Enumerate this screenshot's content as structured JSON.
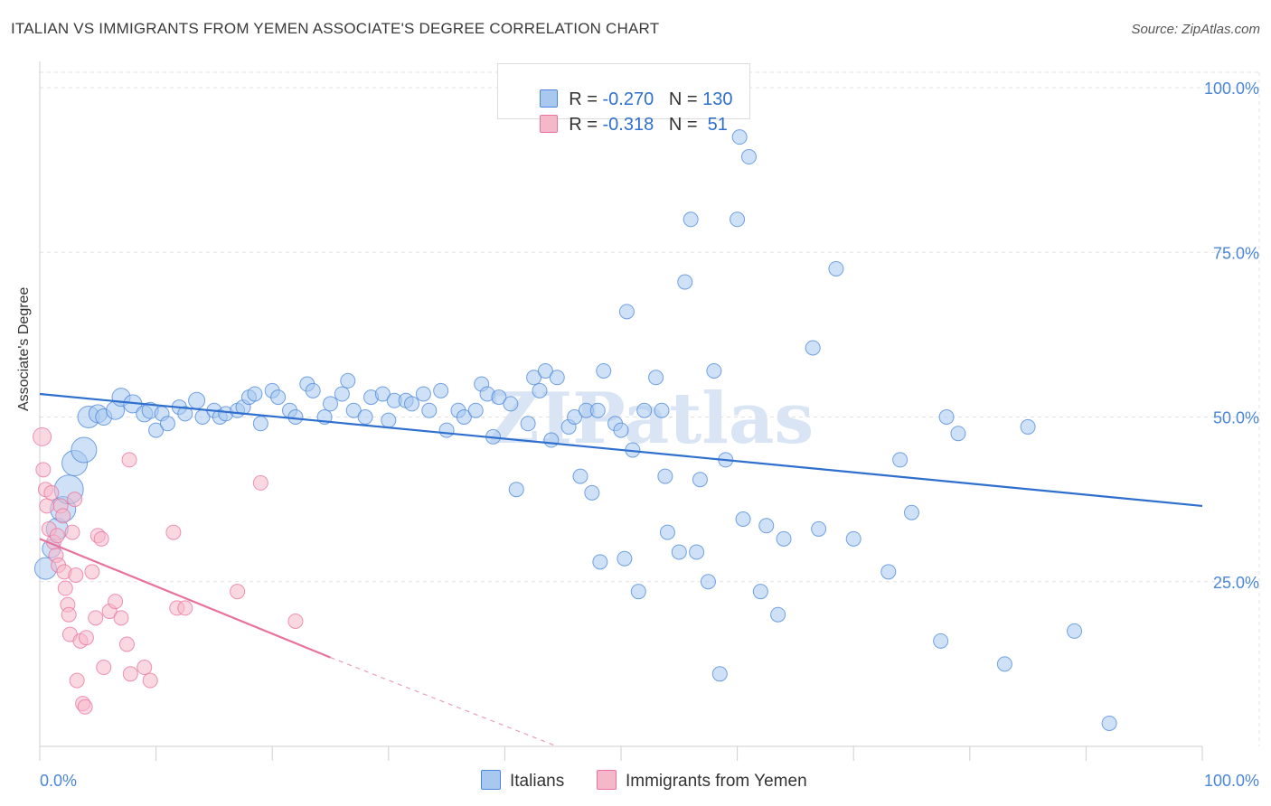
{
  "header": {
    "title": "ITALIAN VS IMMIGRANTS FROM YEMEN ASSOCIATE'S DEGREE CORRELATION CHART",
    "source": "Source: ZipAtlas.com"
  },
  "watermark": "ZIPatlas",
  "legend": {
    "rows": [
      {
        "r_label": "R = ",
        "r_value": "-0.270",
        "n_label": "N = ",
        "n_value": "130",
        "color": "#a8c8f0"
      },
      {
        "r_label": "R = ",
        "r_value": "-0.318",
        "n_label": "N = ",
        "n_value": " 51",
        "color": "#f5b8cb"
      }
    ]
  },
  "bottom_legend": [
    {
      "label": "Italians",
      "color": "#a8c8f0"
    },
    {
      "label": "Immigrants from Yemen",
      "color": "#f5b8cb"
    }
  ],
  "axes": {
    "ylabel": "Associate's Degree",
    "x_min_label": "0.0%",
    "x_max_label": "100.0%",
    "y_ticks": [
      "100.0%",
      "75.0%",
      "50.0%",
      "25.0%"
    ]
  },
  "chart_data": {
    "type": "scatter",
    "xlabel": "",
    "ylabel": "Associate's Degree",
    "xlim": [
      0,
      100
    ],
    "ylim": [
      0,
      100
    ],
    "grid": true,
    "legend_placement": "top-center",
    "series": [
      {
        "name": "Italians",
        "color": "#4a86d9",
        "fill": "#a8c8f0",
        "r": -0.27,
        "n": 130,
        "trend": {
          "x0": 0,
          "y0": 53.5,
          "x1": 100,
          "y1": 36.5
        },
        "points": [
          [
            0.5,
            27,
            12
          ],
          [
            1,
            30,
            10
          ],
          [
            1.5,
            33,
            12
          ],
          [
            2,
            36,
            14
          ],
          [
            2.5,
            39,
            16
          ],
          [
            3,
            43,
            14
          ],
          [
            3.8,
            45,
            14
          ],
          [
            4.2,
            50,
            12
          ],
          [
            5,
            50.5,
            10
          ],
          [
            5.5,
            50,
            9
          ],
          [
            6.5,
            51,
            10
          ],
          [
            7,
            53,
            10
          ],
          [
            8,
            52,
            10
          ],
          [
            9,
            50.5,
            9
          ],
          [
            9.5,
            51,
            9
          ],
          [
            10,
            48,
            8
          ],
          [
            10.5,
            50.5,
            8
          ],
          [
            11,
            49,
            8
          ],
          [
            12,
            51.5,
            8
          ],
          [
            12.5,
            50.5,
            8
          ],
          [
            13.5,
            52.5,
            9
          ],
          [
            14,
            50,
            8
          ],
          [
            15,
            51,
            8
          ],
          [
            15.5,
            50,
            8
          ],
          [
            16,
            50.5,
            8
          ],
          [
            17,
            51,
            8
          ],
          [
            17.5,
            51.5,
            8
          ],
          [
            18,
            53,
            8
          ],
          [
            18.5,
            53.5,
            8
          ],
          [
            19,
            49,
            8
          ],
          [
            20,
            54,
            8
          ],
          [
            20.5,
            53,
            8
          ],
          [
            21.5,
            51,
            8
          ],
          [
            22,
            50,
            8
          ],
          [
            23,
            55,
            8
          ],
          [
            23.5,
            54,
            8
          ],
          [
            24.5,
            50,
            8
          ],
          [
            25,
            52,
            8
          ],
          [
            26,
            53.5,
            8
          ],
          [
            26.5,
            55.5,
            8
          ],
          [
            27,
            51,
            8
          ],
          [
            28,
            50,
            8
          ],
          [
            28.5,
            53,
            8
          ],
          [
            29.5,
            53.5,
            8
          ],
          [
            30,
            49.5,
            8
          ],
          [
            30.5,
            52.5,
            8
          ],
          [
            31.5,
            52.5,
            8
          ],
          [
            32,
            52,
            8
          ],
          [
            33,
            53.5,
            8
          ],
          [
            33.5,
            51,
            8
          ],
          [
            34.5,
            54,
            8
          ],
          [
            35,
            48,
            8
          ],
          [
            36,
            51,
            8
          ],
          [
            36.5,
            50,
            8
          ],
          [
            37.5,
            51,
            8
          ],
          [
            38,
            55,
            8
          ],
          [
            38.5,
            53.5,
            8
          ],
          [
            39,
            47,
            8
          ],
          [
            39.5,
            53,
            8
          ],
          [
            40.5,
            52,
            8
          ],
          [
            41,
            39,
            8
          ],
          [
            42,
            49,
            8
          ],
          [
            42.5,
            56,
            8
          ],
          [
            43,
            54,
            8
          ],
          [
            43.5,
            57,
            8
          ],
          [
            44,
            46.5,
            8
          ],
          [
            44.5,
            56,
            8
          ],
          [
            45.5,
            48.5,
            8
          ],
          [
            46,
            50,
            8
          ],
          [
            46.5,
            41,
            8
          ],
          [
            47,
            51,
            8
          ],
          [
            47.5,
            38.5,
            8
          ],
          [
            48,
            51,
            8
          ],
          [
            48.5,
            57,
            8
          ],
          [
            48.2,
            28,
            8
          ],
          [
            49.5,
            49,
            8
          ],
          [
            50,
            48,
            8
          ],
          [
            50.3,
            28.5,
            8
          ],
          [
            50.5,
            66,
            8
          ],
          [
            51,
            45,
            8
          ],
          [
            51.5,
            23.5,
            8
          ],
          [
            52,
            51,
            8
          ],
          [
            53,
            56,
            8
          ],
          [
            53.5,
            51,
            8
          ],
          [
            53.8,
            41,
            8
          ],
          [
            54,
            32.5,
            8
          ],
          [
            55,
            29.5,
            8
          ],
          [
            55.5,
            70.5,
            8
          ],
          [
            56,
            80,
            8
          ],
          [
            56.5,
            29.5,
            8
          ],
          [
            56.8,
            40.5,
            8
          ],
          [
            57.5,
            25,
            8
          ],
          [
            58,
            57,
            8
          ],
          [
            58.5,
            11,
            8
          ],
          [
            59,
            43.5,
            8
          ],
          [
            60,
            80,
            8
          ],
          [
            60.5,
            34.5,
            8
          ],
          [
            61,
            89.5,
            8
          ],
          [
            60.2,
            92.5,
            8
          ],
          [
            62,
            23.5,
            8
          ],
          [
            62.5,
            33.5,
            8
          ],
          [
            63.5,
            20,
            8
          ],
          [
            64,
            31.5,
            8
          ],
          [
            66.5,
            60.5,
            8
          ],
          [
            67,
            33,
            8
          ],
          [
            68.5,
            72.5,
            8
          ],
          [
            70,
            31.5,
            8
          ],
          [
            73,
            26.5,
            8
          ],
          [
            74,
            43.5,
            8
          ],
          [
            75,
            35.5,
            8
          ],
          [
            77.5,
            16,
            8
          ],
          [
            78,
            50,
            8
          ],
          [
            79,
            47.5,
            8
          ],
          [
            83,
            12.5,
            8
          ],
          [
            85,
            48.5,
            8
          ],
          [
            89,
            17.5,
            8
          ],
          [
            92,
            3.5,
            8
          ]
        ]
      },
      {
        "name": "Immigrants from Yemen",
        "color": "#e8729c",
        "fill": "#f5b8cb",
        "r": -0.318,
        "n": 51,
        "trend": {
          "x0": 0,
          "y0": 31.5,
          "x1": 25,
          "y1": 13.5,
          "dash_to_x": 44.5,
          "dash_to_y": 0
        },
        "points": [
          [
            0.2,
            47,
            10
          ],
          [
            0.3,
            42,
            8
          ],
          [
            0.5,
            39,
            8
          ],
          [
            0.6,
            36.5,
            8
          ],
          [
            0.8,
            33,
            8
          ],
          [
            1,
            38.5,
            8
          ],
          [
            1.2,
            31,
            8
          ],
          [
            1.4,
            29,
            8
          ],
          [
            1.5,
            32,
            8
          ],
          [
            1.6,
            27.5,
            8
          ],
          [
            1.8,
            36.5,
            8
          ],
          [
            2,
            35,
            8
          ],
          [
            2.1,
            26.5,
            8
          ],
          [
            2.2,
            24,
            8
          ],
          [
            2.4,
            21.5,
            8
          ],
          [
            2.5,
            20,
            8
          ],
          [
            2.6,
            17,
            8
          ],
          [
            2.8,
            32.5,
            8
          ],
          [
            3,
            37.5,
            8
          ],
          [
            3.1,
            26,
            8
          ],
          [
            3.2,
            10,
            8
          ],
          [
            3.5,
            16,
            8
          ],
          [
            3.7,
            6.5,
            8
          ],
          [
            3.9,
            6,
            8
          ],
          [
            4,
            16.5,
            8
          ],
          [
            4.5,
            26.5,
            8
          ],
          [
            4.8,
            19.5,
            8
          ],
          [
            5,
            32,
            8
          ],
          [
            5.3,
            31.5,
            8
          ],
          [
            5.5,
            12,
            8
          ],
          [
            6,
            20.5,
            8
          ],
          [
            6.5,
            22,
            8
          ],
          [
            7,
            19.5,
            8
          ],
          [
            7.5,
            15.5,
            8
          ],
          [
            7.8,
            11,
            8
          ],
          [
            7.7,
            43.5,
            8
          ],
          [
            9,
            12,
            8
          ],
          [
            9.5,
            10,
            8
          ],
          [
            11.5,
            32.5,
            8
          ],
          [
            11.8,
            21,
            8
          ],
          [
            12.5,
            21,
            8
          ],
          [
            17,
            23.5,
            8
          ],
          [
            19,
            40,
            8
          ],
          [
            22,
            19,
            8
          ]
        ]
      }
    ]
  }
}
